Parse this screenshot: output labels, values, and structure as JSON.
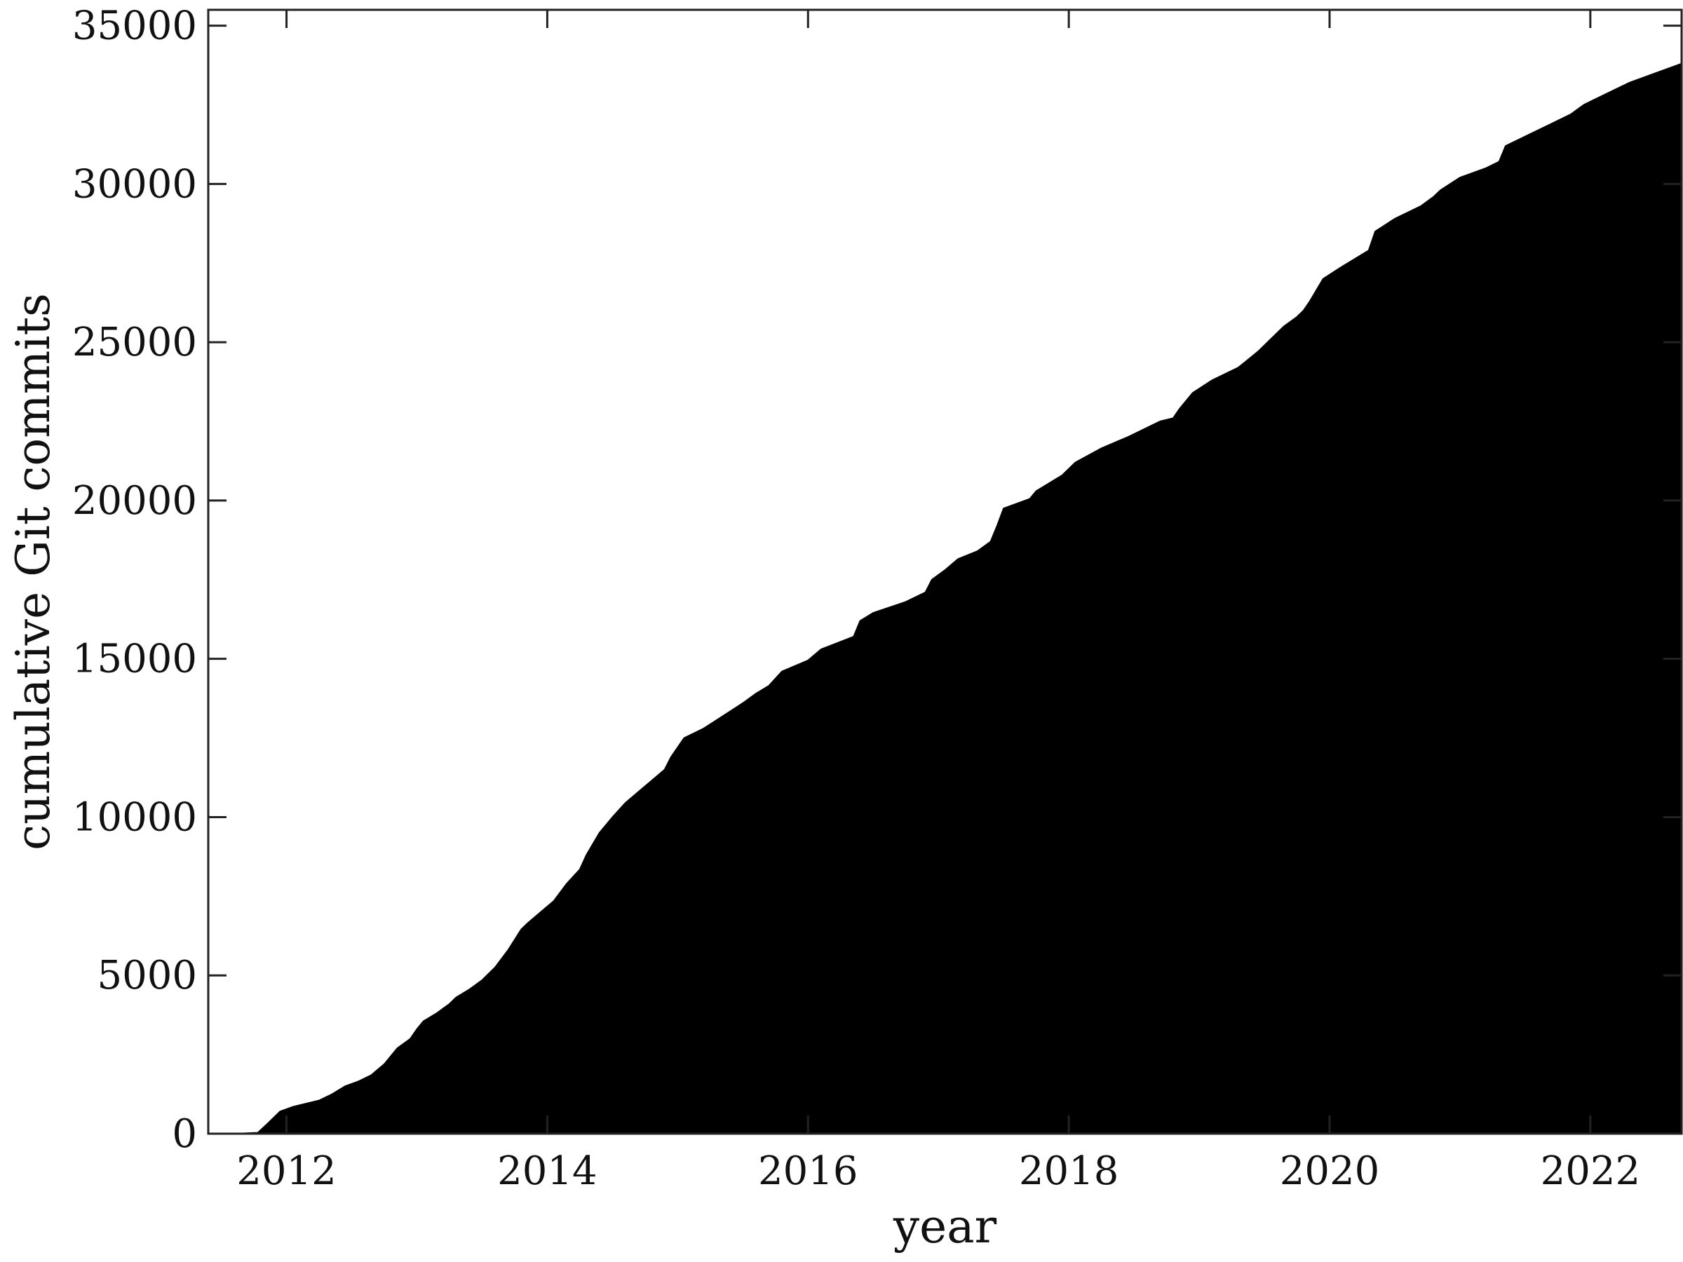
{
  "chart_data": {
    "type": "area",
    "xlabel": "year",
    "ylabel": "cumulative Git commits",
    "xlim": [
      2011.4,
      2022.7
    ],
    "ylim": [
      0,
      35500
    ],
    "x_ticks": [
      2012,
      2014,
      2016,
      2018,
      2020,
      2022
    ],
    "x_tick_labels": [
      "2012",
      "2014",
      "2016",
      "2018",
      "2020",
      "2022"
    ],
    "y_ticks": [
      0,
      5000,
      10000,
      15000,
      20000,
      25000,
      30000,
      35000
    ],
    "y_tick_labels": [
      "0",
      "5000",
      "10000",
      "15000",
      "20000",
      "25000",
      "30000",
      "35000"
    ],
    "fill_color": "#000000",
    "grid": false,
    "series": [
      {
        "x": [
          2011.6,
          2011.78,
          2011.85,
          2011.95,
          2012.05,
          2012.15,
          2012.25,
          2012.35,
          2012.45,
          2012.55,
          2012.65,
          2012.75,
          2012.85,
          2012.95,
          2013.0,
          2013.05,
          2013.15,
          2013.25,
          2013.3,
          2013.4,
          2013.5,
          2013.6,
          2013.7,
          2013.8,
          2013.85,
          2013.95,
          2014.05,
          2014.15,
          2014.25,
          2014.3,
          2014.4,
          2014.5,
          2014.6,
          2014.7,
          2014.8,
          2014.9,
          2014.95,
          2015.05,
          2015.2,
          2015.35,
          2015.5,
          2015.6,
          2015.7,
          2015.8,
          2016.0,
          2016.1,
          2016.35,
          2016.4,
          2016.5,
          2016.75,
          2016.9,
          2016.95,
          2017.05,
          2017.15,
          2017.3,
          2017.4,
          2017.45,
          2017.5,
          2017.7,
          2017.75,
          2017.95,
          2018.05,
          2018.25,
          2018.45,
          2018.7,
          2018.8,
          2018.85,
          2018.95,
          2019.1,
          2019.3,
          2019.45,
          2019.55,
          2019.65,
          2019.75,
          2019.8,
          2019.85,
          2019.95,
          2020.1,
          2020.3,
          2020.35,
          2020.5,
          2020.7,
          2020.8,
          2020.85,
          2021.0,
          2021.2,
          2021.3,
          2021.35,
          2021.6,
          2021.7,
          2021.85,
          2021.95,
          2022.05,
          2022.15,
          2022.3,
          2022.5,
          2022.7
        ],
        "y": [
          0,
          30,
          300,
          700,
          850,
          950,
          1050,
          1250,
          1500,
          1650,
          1850,
          2200,
          2700,
          3000,
          3300,
          3550,
          3800,
          4100,
          4300,
          4550,
          4850,
          5250,
          5800,
          6450,
          6650,
          7000,
          7350,
          7900,
          8350,
          8800,
          9500,
          10000,
          10450,
          10800,
          11150,
          11500,
          11900,
          12500,
          12800,
          13200,
          13600,
          13900,
          14150,
          14600,
          14950,
          15300,
          15700,
          16200,
          16450,
          16800,
          17100,
          17500,
          17800,
          18150,
          18400,
          18700,
          19200,
          19750,
          20050,
          20300,
          20800,
          21200,
          21650,
          22000,
          22500,
          22600,
          22900,
          23400,
          23800,
          24200,
          24700,
          25100,
          25500,
          25800,
          26000,
          26300,
          27000,
          27400,
          27900,
          28500,
          28900,
          29300,
          29600,
          29800,
          30200,
          30500,
          30700,
          31200,
          31700,
          31900,
          32200,
          32500,
          32700,
          32900,
          33200,
          33500,
          33800
        ]
      }
    ]
  }
}
